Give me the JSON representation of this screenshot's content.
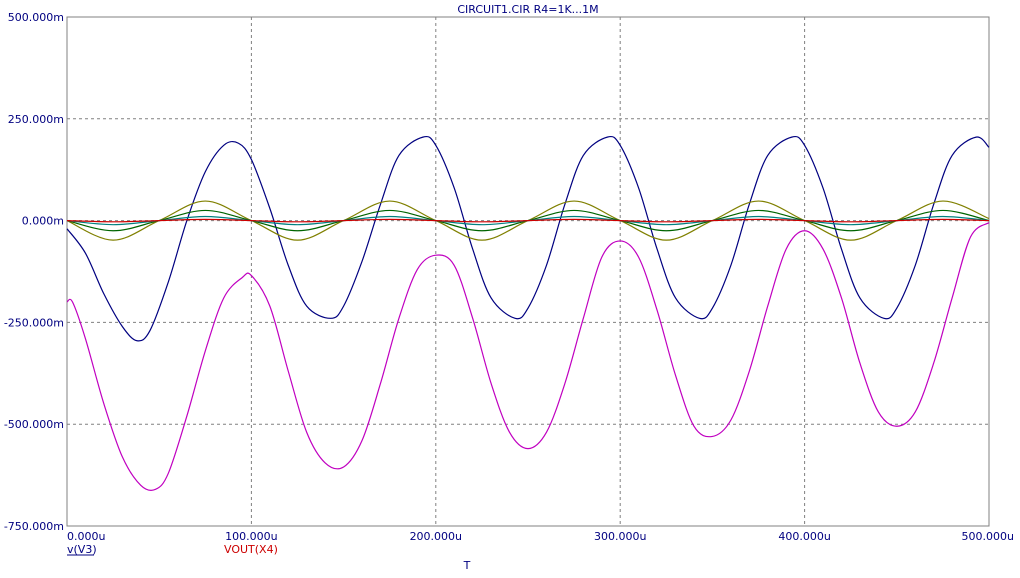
{
  "chart_data": {
    "type": "line",
    "title": "CIRCUIT1.CIR R4=1K...1M",
    "xlabel": "T",
    "xlim": [
      0,
      500
    ],
    "ylim": [
      -750,
      500
    ],
    "x_unit": "u",
    "y_unit": "m",
    "grid": true,
    "x_ticks": [
      "0.000u",
      "100.000u",
      "200.000u",
      "300.000u",
      "400.000u",
      "500.000u"
    ],
    "y_ticks": [
      "500.000m",
      "250.000m",
      "0.000m",
      "-250.000m",
      "-500.000m",
      "-750.000m"
    ],
    "legend": [
      {
        "label": "v(V3)",
        "color": "#000080",
        "underline": true
      },
      {
        "label": "VOUT(X4)",
        "color": "#cc0000",
        "underline": false
      }
    ],
    "series": [
      {
        "color": "#000080",
        "x": [
          0,
          10,
          20,
          30,
          38,
          45,
          55,
          65,
          75,
          85,
          93,
          100,
          110,
          120,
          130,
          143,
          150,
          160,
          170,
          180,
          193,
          200,
          210,
          220,
          230,
          243,
          250,
          260,
          270,
          280,
          293,
          300,
          310,
          320,
          330,
          343,
          350,
          360,
          370,
          380,
          393,
          400,
          410,
          420,
          430,
          443,
          450,
          460,
          470,
          480,
          493,
          500
        ],
        "y": [
          -20,
          -80,
          -180,
          -260,
          -295,
          -270,
          -150,
          0,
          120,
          185,
          190,
          150,
          30,
          -110,
          -210,
          -240,
          -210,
          -100,
          40,
          160,
          205,
          185,
          80,
          -70,
          -190,
          -240,
          -215,
          -110,
          40,
          160,
          205,
          185,
          80,
          -70,
          -190,
          -240,
          -215,
          -110,
          40,
          160,
          205,
          185,
          80,
          -70,
          -190,
          -240,
          -215,
          -110,
          40,
          160,
          205,
          180
        ]
      },
      {
        "color": "#c000c0",
        "x": [
          0,
          3,
          10,
          20,
          30,
          40,
          48,
          55,
          65,
          75,
          85,
          95,
          100,
          110,
          120,
          130,
          140,
          150,
          160,
          170,
          180,
          190,
          200,
          210,
          220,
          230,
          240,
          250,
          260,
          270,
          280,
          290,
          300,
          310,
          320,
          330,
          340,
          350,
          360,
          370,
          380,
          390,
          400,
          410,
          420,
          430,
          440,
          450,
          460,
          470,
          480,
          490,
          500
        ],
        "y": [
          -200,
          -200,
          -290,
          -450,
          -580,
          -650,
          -660,
          -620,
          -480,
          -320,
          -190,
          -140,
          -135,
          -210,
          -370,
          -520,
          -595,
          -605,
          -540,
          -400,
          -240,
          -120,
          -85,
          -110,
          -240,
          -400,
          -520,
          -560,
          -520,
          -400,
          -240,
          -90,
          -50,
          -90,
          -220,
          -380,
          -505,
          -530,
          -490,
          -370,
          -210,
          -70,
          -25,
          -70,
          -190,
          -350,
          -470,
          -505,
          -470,
          -350,
          -190,
          -40,
          -5
        ]
      },
      {
        "color": "#808000",
        "x": [
          0,
          25,
          50,
          75,
          100,
          125,
          150,
          175,
          200,
          225,
          250,
          275,
          300,
          325,
          350,
          375,
          400,
          425,
          450,
          475,
          500
        ],
        "y": [
          0,
          -48,
          0,
          48,
          0,
          -48,
          0,
          48,
          0,
          -48,
          0,
          48,
          0,
          -48,
          0,
          48,
          0,
          -48,
          0,
          48,
          5
        ]
      },
      {
        "color": "#006400",
        "x": [
          0,
          25,
          50,
          75,
          100,
          125,
          150,
          175,
          200,
          225,
          250,
          275,
          300,
          325,
          350,
          375,
          400,
          425,
          450,
          475,
          500
        ],
        "y": [
          0,
          -25,
          0,
          25,
          0,
          -25,
          0,
          25,
          0,
          -25,
          0,
          25,
          0,
          -25,
          0,
          25,
          0,
          -25,
          0,
          25,
          0
        ]
      },
      {
        "color": "#008080",
        "x": [
          0,
          25,
          50,
          75,
          100,
          125,
          150,
          175,
          200,
          225,
          250,
          275,
          300,
          325,
          350,
          375,
          400,
          425,
          450,
          475,
          500
        ],
        "y": [
          0,
          -10,
          0,
          10,
          0,
          -10,
          0,
          10,
          0,
          -10,
          0,
          10,
          0,
          -10,
          0,
          10,
          0,
          -10,
          0,
          10,
          0
        ]
      },
      {
        "color": "#cc0000",
        "x": [
          0,
          25,
          50,
          75,
          100,
          125,
          150,
          175,
          200,
          225,
          250,
          275,
          300,
          325,
          350,
          375,
          400,
          425,
          450,
          475,
          500
        ],
        "y": [
          0,
          -3,
          0,
          3,
          0,
          -3,
          0,
          3,
          0,
          -3,
          0,
          3,
          0,
          -3,
          0,
          3,
          0,
          -3,
          0,
          3,
          0
        ]
      }
    ]
  }
}
